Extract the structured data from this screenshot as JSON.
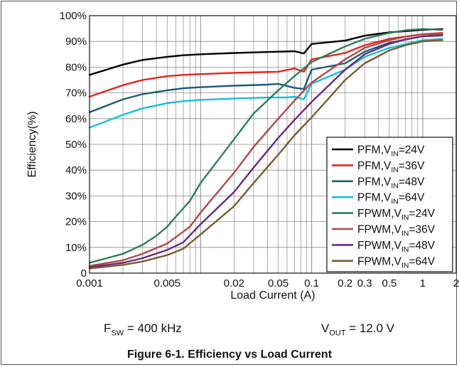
{
  "chart_data": {
    "type": "line",
    "ylabel": "Efficiency(%)",
    "xlabel": "Load Current (A)",
    "x_scale": "log",
    "xlim": [
      0.001,
      2
    ],
    "ylim": [
      0,
      100
    ],
    "grid": true,
    "legend_position": "bottom-right",
    "x_tick_labels": [
      {
        "value": 0.001,
        "label": "0.001"
      },
      {
        "value": 0.005,
        "label": "0.005"
      },
      {
        "value": 0.02,
        "label": "0.02"
      },
      {
        "value": 0.05,
        "label": "0.05"
      },
      {
        "value": 0.1,
        "label": "0.1"
      },
      {
        "value": 0.2,
        "label": "0.2"
      },
      {
        "value": 0.3,
        "label": "0.3"
      },
      {
        "value": 0.5,
        "label": "0.5"
      },
      {
        "value": 1,
        "label": "1"
      },
      {
        "value": 2,
        "label": "2"
      }
    ],
    "y_tick_labels": [
      {
        "value": 0,
        "label": "0"
      },
      {
        "value": 10,
        "label": "10%"
      },
      {
        "value": 20,
        "label": "20%"
      },
      {
        "value": 30,
        "label": "30%"
      },
      {
        "value": 40,
        "label": "40%"
      },
      {
        "value": 50,
        "label": "50%"
      },
      {
        "value": 60,
        "label": "60%"
      },
      {
        "value": 70,
        "label": "70%"
      },
      {
        "value": 80,
        "label": "80%"
      },
      {
        "value": 90,
        "label": "90%"
      },
      {
        "value": 100,
        "label": "100%"
      }
    ],
    "series": [
      {
        "mode": "PFM",
        "vin_label": "24V",
        "color": "#000000",
        "x": [
          0.001,
          0.002,
          0.003,
          0.005,
          0.007,
          0.01,
          0.02,
          0.05,
          0.07,
          0.085,
          0.1,
          0.2,
          0.3,
          0.5,
          1,
          1.5
        ],
        "y": [
          77,
          81,
          82.8,
          84,
          84.6,
          85,
          85.5,
          86,
          86.2,
          85.3,
          89,
          90.3,
          92.2,
          93.5,
          94.5,
          94.8
        ]
      },
      {
        "mode": "PFM",
        "vin_label": "36V",
        "color": "#e8221c",
        "x": [
          0.001,
          0.002,
          0.003,
          0.005,
          0.007,
          0.01,
          0.02,
          0.05,
          0.07,
          0.085,
          0.1,
          0.2,
          0.3,
          0.5,
          1,
          1.5
        ],
        "y": [
          68.5,
          73,
          75,
          76.5,
          77,
          77.3,
          77.8,
          78.2,
          79.5,
          78.2,
          83,
          85.5,
          88.5,
          91,
          92.8,
          93.3
        ]
      },
      {
        "mode": "PFM",
        "vin_label": "48V",
        "color": "#1b5c7a",
        "x": [
          0.001,
          0.002,
          0.003,
          0.005,
          0.007,
          0.01,
          0.02,
          0.04,
          0.05,
          0.07,
          0.085,
          0.1,
          0.2,
          0.3,
          0.5,
          1,
          1.5
        ],
        "y": [
          62.5,
          67.5,
          69.5,
          71,
          71.8,
          72.2,
          72.8,
          73.2,
          73.5,
          72,
          71.5,
          79,
          81.5,
          86,
          89.5,
          92,
          92.5
        ]
      },
      {
        "mode": "PFM",
        "vin_label": "64V",
        "color": "#16bfd6",
        "x": [
          0.001,
          0.002,
          0.003,
          0.005,
          0.007,
          0.01,
          0.02,
          0.04,
          0.06,
          0.07,
          0.085,
          0.1,
          0.2,
          0.3,
          0.5,
          1,
          1.5
        ],
        "y": [
          56.5,
          61.5,
          64,
          66,
          66.8,
          67.3,
          67.8,
          68.2,
          68.2,
          68.5,
          67.5,
          73.5,
          79,
          84,
          87.5,
          90.5,
          91
        ]
      },
      {
        "mode": "FPWM",
        "vin_label": "24V",
        "color": "#2e7d5b",
        "x": [
          0.001,
          0.002,
          0.003,
          0.004,
          0.005,
          0.006,
          0.008,
          0.01,
          0.02,
          0.03,
          0.05,
          0.07,
          0.1,
          0.2,
          0.3,
          0.5,
          0.7,
          1,
          1.5
        ],
        "y": [
          4,
          7.5,
          11,
          14.5,
          18,
          22,
          28,
          35,
          52,
          62,
          71,
          76.5,
          82,
          88,
          91,
          93.3,
          94.3,
          94.8,
          94.5
        ]
      },
      {
        "mode": "FPWM",
        "vin_label": "36V",
        "color": "#b04848",
        "x": [
          0.001,
          0.002,
          0.003,
          0.005,
          0.006,
          0.008,
          0.01,
          0.02,
          0.03,
          0.05,
          0.07,
          0.1,
          0.2,
          0.3,
          0.5,
          0.7,
          1,
          1.5
        ],
        "y": [
          2.8,
          5,
          7.5,
          11.5,
          14,
          18,
          23.5,
          39,
          49,
          60,
          67,
          74,
          83,
          87.5,
          90.5,
          91.8,
          92.8,
          93
        ]
      },
      {
        "mode": "FPWM",
        "vin_label": "48V",
        "color": "#6a2b7a",
        "x": [
          0.001,
          0.002,
          0.003,
          0.005,
          0.007,
          0.01,
          0.02,
          0.03,
          0.05,
          0.07,
          0.1,
          0.2,
          0.3,
          0.5,
          0.7,
          1,
          1.5
        ],
        "y": [
          2.3,
          4,
          5.8,
          9,
          12,
          19,
          31.5,
          41,
          52.5,
          59.5,
          66.5,
          79,
          85,
          89,
          90.8,
          92,
          92.3
        ]
      },
      {
        "mode": "FPWM",
        "vin_label": "64V",
        "color": "#7a5a32",
        "x": [
          0.001,
          0.002,
          0.003,
          0.005,
          0.007,
          0.01,
          0.02,
          0.03,
          0.05,
          0.07,
          0.1,
          0.2,
          0.3,
          0.5,
          0.7,
          1,
          1.5
        ],
        "y": [
          1.8,
          3.2,
          4.5,
          7,
          9.5,
          15,
          26,
          35,
          46,
          53.5,
          60.5,
          75,
          81.5,
          86.5,
          88.5,
          90,
          90.5
        ]
      }
    ]
  },
  "legend": {
    "vin_prefix": "V",
    "vin_subscript": "IN",
    "equals": "="
  },
  "conditions": {
    "fsw_main": "F",
    "fsw_sub": "SW",
    "fsw_value": " = 400 kHz",
    "vout_main": "V",
    "vout_sub": "OUT",
    "vout_value": " = 12.0 V"
  },
  "caption": "Figure 6-1. Efficiency vs Load Current"
}
